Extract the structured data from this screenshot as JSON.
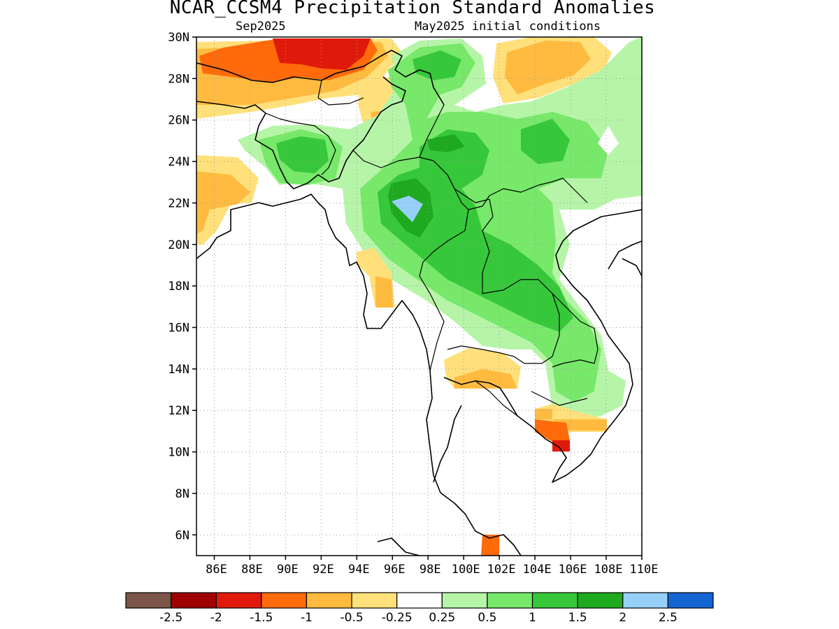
{
  "title": "NCAR_CCSM4 Precipitation Standard Anomalies",
  "subtitle_left": "Sep2025",
  "subtitle_right": "May2025 initial conditions",
  "axes": {
    "lat_labels": [
      "30N",
      "28N",
      "26N",
      "24N",
      "22N",
      "20N",
      "18N",
      "16N",
      "14N",
      "12N",
      "10N",
      "8N",
      "6N"
    ],
    "lon_labels": [
      "86E",
      "88E",
      "90E",
      "92E",
      "94E",
      "96E",
      "98E",
      "100E",
      "102E",
      "104E",
      "106E",
      "108E",
      "110E"
    ],
    "lat_range": [
      5,
      30
    ],
    "lon_range": [
      85,
      110
    ],
    "grid": "dotted"
  },
  "colorbar": {
    "colors": [
      "#7a5548",
      "#a00000",
      "#e01a0a",
      "#ff6a0a",
      "#ffbb40",
      "#ffe07a",
      "#ffffff",
      "#b6f5a8",
      "#78e86a",
      "#36c83a",
      "#1ea91e",
      "#96d0f8",
      "#1464d2"
    ],
    "labels": [
      "-2.5",
      "-2",
      "-1.5",
      "-1",
      "-0.5",
      "-0.25",
      "0.25",
      "0.5",
      "1",
      "1.5",
      "2",
      "2.5"
    ]
  },
  "map": {
    "anomaly_regions": [
      {
        "level": "-2",
        "color": "#e01a0a"
      },
      {
        "level": "-1.5",
        "color": "#ff6a0a"
      },
      {
        "level": "-1",
        "color": "#ffbb40"
      },
      {
        "level": "-0.5",
        "color": "#ffe07a"
      },
      {
        "level": "0.5",
        "color": "#b6f5a8"
      },
      {
        "level": "1",
        "color": "#78e86a"
      },
      {
        "level": "1.5",
        "color": "#36c83a"
      },
      {
        "level": "2",
        "color": "#1ea91e"
      },
      {
        "level": "2.5",
        "color": "#96d0f8"
      }
    ]
  }
}
